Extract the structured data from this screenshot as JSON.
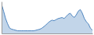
{
  "chart_data": {
    "type": "area",
    "values": [
      55,
      42,
      28,
      18,
      10,
      8,
      7,
      6,
      5,
      5,
      5,
      5,
      5,
      5,
      5,
      5,
      5,
      6,
      7,
      8,
      10,
      13,
      16,
      20,
      23,
      25,
      24,
      26,
      28,
      29,
      30,
      28,
      32,
      36,
      38,
      33,
      30,
      35,
      42,
      45,
      38,
      28,
      22,
      18,
      10,
      6
    ],
    "color": "#4f86c0",
    "xlim": [
      0,
      45
    ],
    "ylim": [
      0,
      60
    ],
    "tick_labels": false,
    "grid": false
  }
}
